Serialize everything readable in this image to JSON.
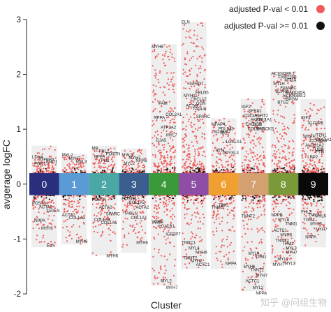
{
  "watermark": "知乎 @问组生物",
  "chart_data": {
    "type": "scatter",
    "xlabel": "Cluster",
    "ylabel": "avgerage logFC",
    "ylim": [
      -2.05,
      3.1
    ],
    "yticks": [
      -2,
      -1,
      0,
      1,
      2,
      3
    ],
    "legend": {
      "placement": "top-right",
      "entries": [
        {
          "label": "adjusted P-val < 0.01",
          "color": "#f05b5b"
        },
        {
          "label": "adjusted  P-val >= 0.01",
          "color": "#111111"
        }
      ]
    },
    "band_range": [
      -0.2,
      0.2
    ],
    "clusters": [
      {
        "name": "0",
        "color": "#2a2f7d",
        "text_color": "#ffffff",
        "max": 0.7,
        "min": -1.15,
        "grey_up": 0.25,
        "grey_down": 0.25,
        "grey_density": 0.0,
        "genes_up": [
          {
            "g": "LDHA",
            "y": 0.44
          },
          {
            "g": "IGFBP3",
            "y": 0.4
          },
          {
            "g": "ENO1",
            "y": 0.36
          },
          {
            "g": "PGK1",
            "y": 0.32
          }
        ],
        "genes_down": [
          {
            "g": "POSTN",
            "y": -0.28
          },
          {
            "g": "ACTA2",
            "y": -0.35
          },
          {
            "g": "TAGLN",
            "y": -0.42
          },
          {
            "g": "NPPA",
            "y": -0.6
          },
          {
            "g": "MYH6",
            "y": -0.74
          },
          {
            "g": "ELN",
            "y": -1.05
          }
        ]
      },
      {
        "name": "1",
        "color": "#5b9bd5",
        "text_color": "#ffffff",
        "max": 0.55,
        "min": -1.1,
        "grey_up": 0.3,
        "grey_down": 0.25,
        "grey_density": 0.0,
        "genes_up": [
          {
            "g": "MYL2",
            "y": 0.48
          },
          {
            "g": "MYH7",
            "y": 0.42
          },
          {
            "g": "MYL3",
            "y": 0.36
          }
        ],
        "genes_down": [
          {
            "g": "ACTA2",
            "y": -0.5
          },
          {
            "g": "COL1A1",
            "y": -0.55
          },
          {
            "g": "MYH6",
            "y": -0.98
          }
        ]
      },
      {
        "name": "2",
        "color": "#4aa7a3",
        "text_color": "#ffffff",
        "max": 0.7,
        "min": -1.3,
        "grey_up": 0.3,
        "grey_down": 0.25,
        "grey_density": 0.0,
        "genes_up": [
          {
            "g": "MB",
            "y": 0.6
          },
          {
            "g": "FHL2",
            "y": 0.55
          },
          {
            "g": "POSTN",
            "y": 0.5
          },
          {
            "g": "NPPA",
            "y": 0.45
          },
          {
            "g": "PLN",
            "y": 0.38
          }
        ],
        "genes_down": [
          {
            "g": "POSTN",
            "y": -0.22
          },
          {
            "g": "ACTA2",
            "y": -0.36
          },
          {
            "g": "SPARC",
            "y": -0.48
          },
          {
            "g": "COL1A2",
            "y": -0.58
          },
          {
            "g": "COL1A1",
            "y": -0.64
          },
          {
            "g": "MYH6",
            "y": -1.24
          }
        ]
      },
      {
        "name": "3",
        "color": "#3a5f8f",
        "text_color": "#ffffff",
        "max": 0.65,
        "min": -1.25,
        "grey_up": 0.25,
        "grey_down": 0.25,
        "grey_density": 0.0,
        "genes_up": [
          {
            "g": "MYL3",
            "y": 0.48
          },
          {
            "g": "MYH7",
            "y": 0.43
          },
          {
            "g": "NPPB",
            "y": 0.38
          },
          {
            "g": "MYL2",
            "y": 0.33
          }
        ],
        "genes_down": [
          {
            "g": "POSTN",
            "y": -0.2
          },
          {
            "g": "COL1A2",
            "y": -0.27
          },
          {
            "g": "ACTA2",
            "y": -0.36
          },
          {
            "g": "TAGLN",
            "y": -0.47
          },
          {
            "g": "COL1A1",
            "y": -0.55
          },
          {
            "g": "MYH6",
            "y": -1.0
          }
        ]
      },
      {
        "name": "4",
        "color": "#3a9a3a",
        "text_color": "#ffffff",
        "max": 2.55,
        "min": -1.85,
        "grey_up": 0.3,
        "grey_down": 0.3,
        "grey_density": 0.0,
        "genes_up": [
          {
            "g": "MYH6",
            "y": 2.45
          },
          {
            "g": "PAM",
            "y": 1.42
          },
          {
            "g": "COL2A1",
            "y": 1.22
          },
          {
            "g": "NPPA",
            "y": 1.16
          },
          {
            "g": "ATP2A2",
            "y": 0.98
          },
          {
            "g": "MYL7",
            "y": 0.84
          },
          {
            "g": "GJA5",
            "y": 0.75
          }
        ],
        "genes_down": [
          {
            "g": "VCAN",
            "y": -0.62
          },
          {
            "g": "LGALS1",
            "y": -0.7
          },
          {
            "g": "IGFBP7",
            "y": -0.85
          },
          {
            "g": "VIM",
            "y": -0.63
          },
          {
            "g": "MYL2",
            "y": -1.7
          },
          {
            "g": "MYH7",
            "y": -1.82
          }
        ]
      },
      {
        "name": "5",
        "color": "#8e4ea6",
        "text_color": "#ffffff",
        "max": 2.95,
        "min": -1.55,
        "grey_up": 0.3,
        "grey_down": 0.3,
        "grey_density": 0.0,
        "genes_up": [
          {
            "g": "ELN",
            "y": 2.9
          },
          {
            "g": "IGFBP7",
            "y": 1.78
          },
          {
            "g": "FBLN5",
            "y": 1.62
          },
          {
            "g": "MYH11",
            "y": 1.56
          },
          {
            "g": "CXCL12",
            "y": 1.5
          },
          {
            "g": "OGN",
            "y": 1.42
          },
          {
            "g": "ACTA2",
            "y": 1.38
          },
          {
            "g": "TAGLN",
            "y": 1.32
          },
          {
            "g": "SPARC",
            "y": 1.18
          }
        ],
        "genes_down": [
          {
            "g": "TNNC1",
            "y": -1.0
          },
          {
            "g": "MYL4",
            "y": -1.1
          },
          {
            "g": "MYH6",
            "y": -1.18
          },
          {
            "g": "TNNT2",
            "y": -1.28
          },
          {
            "g": "MYH7",
            "y": -1.34
          },
          {
            "g": "ACTC1",
            "y": -1.4
          }
        ]
      },
      {
        "name": "6",
        "color": "#f0a030",
        "text_color": "#ffffff",
        "max": 1.2,
        "min": -1.55,
        "grey_up": 0.3,
        "grey_down": 0.3,
        "grey_density": 0.0,
        "genes_up": [
          {
            "g": "MFAP4",
            "y": 1.04
          },
          {
            "g": "PDLIM3",
            "y": 0.96
          },
          {
            "g": "C7",
            "y": 0.9
          },
          {
            "g": "SOX4",
            "y": 0.9
          },
          {
            "g": "ID2",
            "y": 0.88
          },
          {
            "g": "LGALS1",
            "y": 0.72
          },
          {
            "g": "RTN",
            "y": 0.56
          },
          {
            "g": "DPYSL3",
            "y": 0.52
          }
        ],
        "genes_down": [
          {
            "g": "TNNI3",
            "y": -0.36
          },
          {
            "g": "TBX1",
            "y": -0.32
          },
          {
            "g": "NPPA",
            "y": -1.38
          }
        ]
      },
      {
        "name": "7",
        "color": "#d4a070",
        "text_color": "#ffffff",
        "max": 1.55,
        "min": -1.95,
        "grey_up": 0.3,
        "grey_down": 0.3,
        "grey_density": 0.0,
        "genes_up": [
          {
            "g": "IGF2",
            "y": 1.36
          },
          {
            "g": "SFRP1",
            "y": 1.28
          },
          {
            "g": "FLRT2",
            "y": 1.2
          },
          {
            "g": "COL3A1",
            "y": 1.2
          },
          {
            "g": "AKAP12",
            "y": 1.12
          },
          {
            "g": "COL1A1",
            "y": 1.12
          },
          {
            "g": "CXCL12",
            "y": 1.04
          },
          {
            "g": "OGN",
            "y": 1.04
          },
          {
            "g": "MARCKS",
            "y": 0.96
          },
          {
            "g": "COL1A2",
            "y": 0.96
          }
        ],
        "genes_down": [
          {
            "g": "TNNT2",
            "y": -0.52
          },
          {
            "g": "MYL4",
            "y": -1.2
          },
          {
            "g": "TPM1",
            "y": -1.26
          },
          {
            "g": "MYH6",
            "y": -1.44
          },
          {
            "g": "TNNT2",
            "y": -1.5
          },
          {
            "g": "MYH7",
            "y": -1.6
          },
          {
            "g": "ACTC1",
            "y": -1.7
          },
          {
            "g": "MYL2",
            "y": -1.82
          },
          {
            "g": "NPPA",
            "y": -1.92
          }
        ]
      },
      {
        "name": "8",
        "color": "#7a9a3a",
        "text_color": "#ffffff",
        "max": 2.05,
        "min": -1.45,
        "grey_up": 0.3,
        "grey_down": 0.3,
        "grey_density": 0.0,
        "genes_up": [
          {
            "g": "AC104389.1",
            "y": 1.96
          },
          {
            "g": "FAM210B",
            "y": 1.9
          },
          {
            "g": "MT2A",
            "y": 1.84
          },
          {
            "g": "MT1H",
            "y": 1.78
          },
          {
            "g": "FAM46C",
            "y": 1.7
          },
          {
            "g": "GADD45A",
            "y": 1.62
          },
          {
            "g": "BLVRB",
            "y": 1.64
          },
          {
            "g": "AC104389.2",
            "y": 1.56
          },
          {
            "g": "BPGM",
            "y": 1.5
          },
          {
            "g": "BTG2",
            "y": 1.44
          }
        ],
        "genes_down": [
          {
            "g": "NPPB",
            "y": -0.5
          },
          {
            "g": "MYL4",
            "y": -0.58
          },
          {
            "g": "TNNI1",
            "y": -0.66
          },
          {
            "g": "ACTC1",
            "y": -0.78
          },
          {
            "g": "MYH6",
            "y": -0.86
          },
          {
            "g": "MYL3",
            "y": -1.1
          },
          {
            "g": "TNNT2",
            "y": -0.96
          },
          {
            "g": "TPM1",
            "y": -1.02
          },
          {
            "g": "MYH7",
            "y": -1.18
          },
          {
            "g": "MYL2",
            "y": -1.3
          },
          {
            "g": "MYL3",
            "y": -1.38
          },
          {
            "g": "MYH7",
            "y": -1.4
          }
        ]
      },
      {
        "name": "9",
        "color": "#0a0a0a",
        "text_color": "#ffffff",
        "max": 1.55,
        "min": -1.15,
        "grey_up": 0.3,
        "grey_down": 0.35,
        "grey_density": 1.0,
        "genes_up": [
          {
            "g": "IGF2",
            "y": 1.16
          },
          {
            "g": "IGFBP5",
            "y": 1.06
          },
          {
            "g": "ITLN1",
            "y": 0.84
          },
          {
            "g": "MYRF",
            "y": 0.82
          },
          {
            "g": "CCDC80",
            "y": 0.74
          },
          {
            "g": "COL1A1",
            "y": 0.76
          },
          {
            "g": "ALDH1A2",
            "y": 0.66
          },
          {
            "g": "TUBB",
            "y": 0.58
          },
          {
            "g": "PTN",
            "y": 0.54
          },
          {
            "g": "LRP2",
            "y": 0.44
          }
        ],
        "genes_down": [
          {
            "g": "FHL2",
            "y": -0.44
          },
          {
            "g": "TNNT2",
            "y": -0.5
          },
          {
            "g": "MYL4",
            "y": -0.52
          },
          {
            "g": "TGM2",
            "y": -0.58
          },
          {
            "g": "MYH6",
            "y": -0.66
          },
          {
            "g": "MYH7",
            "y": -0.76
          },
          {
            "g": "NPPA",
            "y": -0.9
          }
        ]
      }
    ]
  }
}
